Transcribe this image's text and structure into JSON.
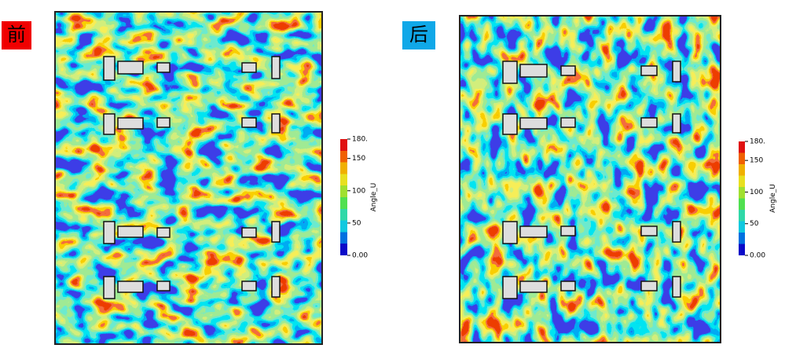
{
  "panels": [
    {
      "label": "前",
      "colorbar": {
        "title": "Angle_U",
        "ticks": [
          {
            "value": 180,
            "label": "180."
          },
          150,
          100,
          50,
          {
            "value": 0,
            "label": "0.00"
          }
        ]
      }
    },
    {
      "label": "后",
      "colorbar": {
        "title": "Angle_U",
        "ticks": [
          {
            "value": 180,
            "label": "180."
          },
          150,
          100,
          50,
          {
            "value": 0,
            "label": "0.00"
          }
        ]
      }
    }
  ]
}
